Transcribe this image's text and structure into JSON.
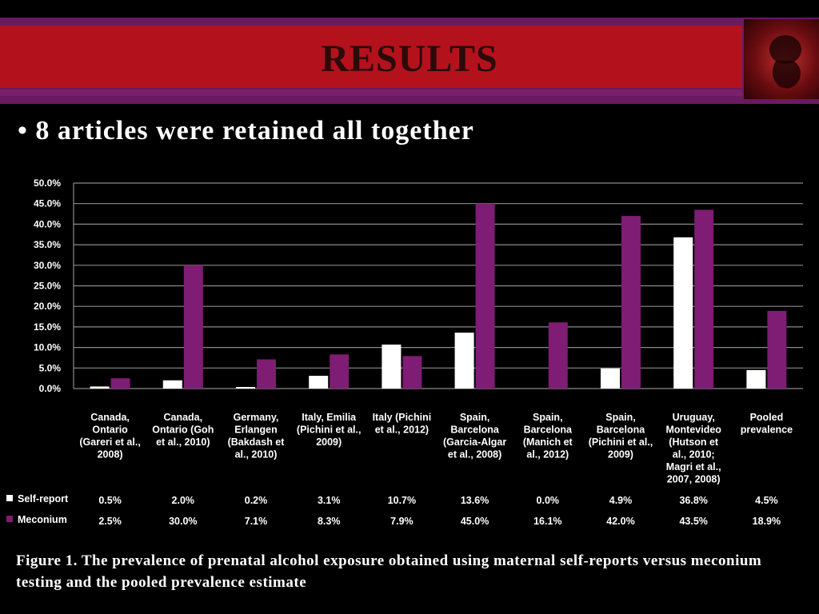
{
  "slide": {
    "title": "RESULTS",
    "bullet": "• 8 articles were retained all together",
    "caption": "Figure 1. The prevalence of prenatal alcohol exposure obtained using maternal self-reports versus meconium testing and the pooled prevalence estimate"
  },
  "chart_data": {
    "type": "bar",
    "categories": [
      [
        "Canada,",
        "Ontario",
        "(Gareri et al.,",
        "2008)"
      ],
      [
        "Canada,",
        "Ontario (Goh",
        "et al., 2010)"
      ],
      [
        "Germany,",
        "Erlangen",
        "(Bakdash et",
        "al., 2010)"
      ],
      [
        "Italy, Emilia",
        "(Pichini et al.,",
        "2009)"
      ],
      [
        "Italy (Pichini",
        "et al., 2012)"
      ],
      [
        "Spain,",
        "Barcelona",
        "(Garcia-Algar",
        "et al., 2008)"
      ],
      [
        "Spain,",
        "Barcelona",
        "(Manich et",
        "al., 2012)"
      ],
      [
        "Spain,",
        "Barcelona",
        "(Pichini et al.,",
        "2009)"
      ],
      [
        "Uruguay,",
        "Montevideo",
        "(Hutson et",
        "al., 2010;",
        "Magri et al.,",
        "2007, 2008)"
      ],
      [
        "Pooled",
        "prevalence"
      ]
    ],
    "series": [
      {
        "name": "Self-report",
        "color": "#ffffff",
        "values": [
          0.5,
          2.0,
          0.2,
          3.1,
          10.7,
          13.6,
          0.0,
          4.9,
          36.8,
          4.5
        ],
        "labels": [
          "0.5%",
          "2.0%",
          "0.2%",
          "3.1%",
          "10.7%",
          "13.6%",
          "0.0%",
          "4.9%",
          "36.8%",
          "4.5%"
        ]
      },
      {
        "name": "Meconium",
        "color": "#7f1c73",
        "values": [
          2.5,
          30.0,
          7.1,
          8.3,
          7.9,
          45.0,
          16.1,
          42.0,
          43.5,
          18.9
        ],
        "labels": [
          "2.5%",
          "30.0%",
          "7.1%",
          "8.3%",
          "7.9%",
          "45.0%",
          "16.1%",
          "42.0%",
          "43.5%",
          "18.9%"
        ]
      }
    ],
    "yticks": [
      "0.0%",
      "5.0%",
      "10.0%",
      "15.0%",
      "20.0%",
      "25.0%",
      "30.0%",
      "35.0%",
      "40.0%",
      "45.0%",
      "50.0%"
    ],
    "ylim": [
      0,
      50
    ],
    "grid": true,
    "legend": "data-table-left"
  }
}
